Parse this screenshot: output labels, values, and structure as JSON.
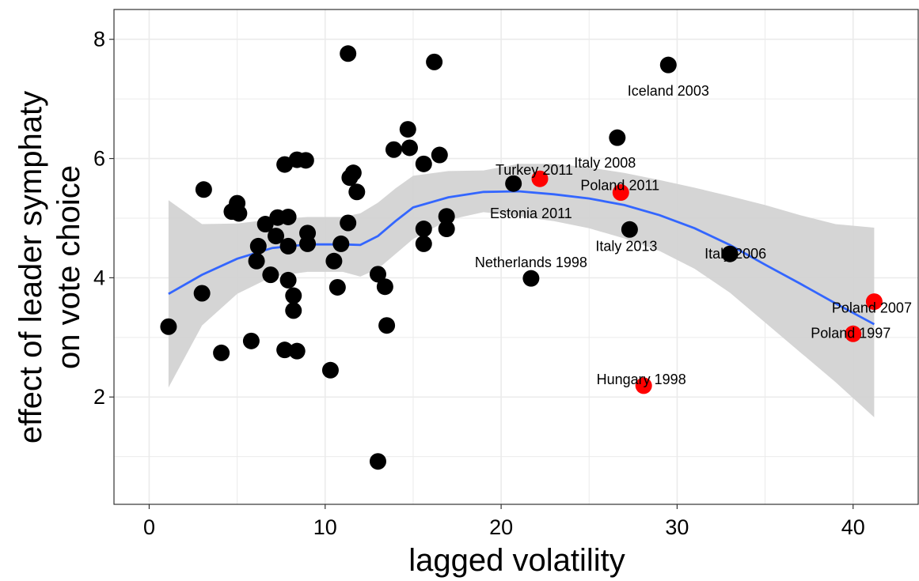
{
  "chart_data": {
    "type": "scatter",
    "xlabel": "lagged volatility",
    "ylabel_lines": [
      "effect of  leader symphaty",
      "on vote choice"
    ],
    "xlim": [
      -2,
      43.7
    ],
    "ylim": [
      0.2,
      8.5
    ],
    "x_ticks": [
      0,
      10,
      20,
      30,
      40
    ],
    "y_ticks": [
      2,
      4,
      6,
      8
    ],
    "grid": true,
    "colors": {
      "default_point": "#000000",
      "highlight_point": "#ff0000",
      "trend": "#3366ff",
      "band": "#d3d3d3",
      "grid": "#ebebeb"
    },
    "points": [
      {
        "x": 1.1,
        "y": 3.18
      },
      {
        "x": 3.0,
        "y": 3.74
      },
      {
        "x": 3.1,
        "y": 5.48
      },
      {
        "x": 4.1,
        "y": 2.74
      },
      {
        "x": 4.7,
        "y": 5.11
      },
      {
        "x": 5.0,
        "y": 5.25
      },
      {
        "x": 5.1,
        "y": 5.08
      },
      {
        "x": 5.8,
        "y": 2.94
      },
      {
        "x": 6.1,
        "y": 4.28
      },
      {
        "x": 6.2,
        "y": 4.53
      },
      {
        "x": 6.6,
        "y": 4.9
      },
      {
        "x": 6.9,
        "y": 4.05
      },
      {
        "x": 7.2,
        "y": 4.7
      },
      {
        "x": 7.3,
        "y": 5.01
      },
      {
        "x": 7.7,
        "y": 5.9
      },
      {
        "x": 7.7,
        "y": 2.79
      },
      {
        "x": 7.9,
        "y": 3.96
      },
      {
        "x": 7.9,
        "y": 5.02
      },
      {
        "x": 7.9,
        "y": 4.53
      },
      {
        "x": 8.2,
        "y": 3.7
      },
      {
        "x": 8.2,
        "y": 3.45
      },
      {
        "x": 8.4,
        "y": 5.98
      },
      {
        "x": 8.4,
        "y": 2.77
      },
      {
        "x": 8.9,
        "y": 5.97
      },
      {
        "x": 9.0,
        "y": 4.75
      },
      {
        "x": 9.0,
        "y": 4.57
      },
      {
        "x": 10.3,
        "y": 2.45
      },
      {
        "x": 10.5,
        "y": 4.28
      },
      {
        "x": 10.7,
        "y": 3.84
      },
      {
        "x": 10.9,
        "y": 4.57
      },
      {
        "x": 11.3,
        "y": 7.76
      },
      {
        "x": 11.3,
        "y": 4.92
      },
      {
        "x": 11.4,
        "y": 5.68
      },
      {
        "x": 11.6,
        "y": 5.76
      },
      {
        "x": 11.8,
        "y": 5.44
      },
      {
        "x": 13.0,
        "y": 4.06
      },
      {
        "x": 13.0,
        "y": 0.92
      },
      {
        "x": 13.4,
        "y": 3.85
      },
      {
        "x": 13.5,
        "y": 3.2
      },
      {
        "x": 13.9,
        "y": 6.15
      },
      {
        "x": 14.7,
        "y": 6.49
      },
      {
        "x": 14.8,
        "y": 6.18
      },
      {
        "x": 15.6,
        "y": 5.91
      },
      {
        "x": 15.6,
        "y": 4.82
      },
      {
        "x": 15.6,
        "y": 4.57
      },
      {
        "x": 16.2,
        "y": 7.62
      },
      {
        "x": 16.5,
        "y": 6.06
      },
      {
        "x": 16.9,
        "y": 5.03
      },
      {
        "x": 16.9,
        "y": 4.82
      },
      {
        "x": 20.7,
        "y": 5.58
      },
      {
        "x": 21.7,
        "y": 3.99,
        "label": "Netherlands 1998"
      },
      {
        "x": 22.2,
        "y": 5.66,
        "label": "Turkey 2011",
        "highlight": true
      },
      {
        "x": 26.6,
        "y": 6.35
      },
      {
        "x": 26.8,
        "y": 5.43,
        "label": "Poland 2011",
        "highlight": true
      },
      {
        "x": 27.3,
        "y": 4.81,
        "label": "Italy 2013"
      },
      {
        "x": 28.1,
        "y": 2.19,
        "label": "Hungary 1998",
        "highlight": true
      },
      {
        "x": 29.5,
        "y": 7.57,
        "label": "Iceland 2003"
      },
      {
        "x": 33.0,
        "y": 4.4,
        "label": "Italy 2006"
      },
      {
        "x": 40.0,
        "y": 3.06,
        "label": "Poland 1997",
        "highlight": true
      },
      {
        "x": 41.2,
        "y": 3.6,
        "label": "Poland 2007",
        "highlight": true
      }
    ],
    "free_labels": [
      {
        "text": "Italy 2008",
        "x": 25.9,
        "y": 5.93
      },
      {
        "text": "Estonia 2011",
        "x": 21.7,
        "y": 5.08
      }
    ],
    "smooth": {
      "x": [
        1.1,
        3,
        5,
        7,
        9,
        11,
        12,
        13,
        14,
        15,
        17,
        19,
        21,
        23,
        25,
        27,
        29,
        31,
        33,
        35,
        37,
        39,
        41.2
      ],
      "y": [
        3.73,
        4.05,
        4.32,
        4.5,
        4.56,
        4.56,
        4.55,
        4.7,
        4.95,
        5.18,
        5.35,
        5.44,
        5.45,
        5.4,
        5.33,
        5.22,
        5.05,
        4.83,
        4.55,
        4.22,
        3.9,
        3.57,
        3.22
      ],
      "lower": [
        2.16,
        3.2,
        3.73,
        4.02,
        4.1,
        4.1,
        4.02,
        4.15,
        4.4,
        4.65,
        4.97,
        5.1,
        5.03,
        4.95,
        4.83,
        4.66,
        4.45,
        4.15,
        3.75,
        3.25,
        2.75,
        2.25,
        1.66
      ],
      "upper": [
        5.3,
        4.9,
        4.91,
        4.98,
        5.02,
        5.02,
        5.08,
        5.26,
        5.5,
        5.71,
        5.79,
        5.8,
        5.91,
        5.91,
        5.85,
        5.76,
        5.64,
        5.51,
        5.37,
        5.22,
        5.05,
        4.9,
        4.84
      ]
    }
  }
}
